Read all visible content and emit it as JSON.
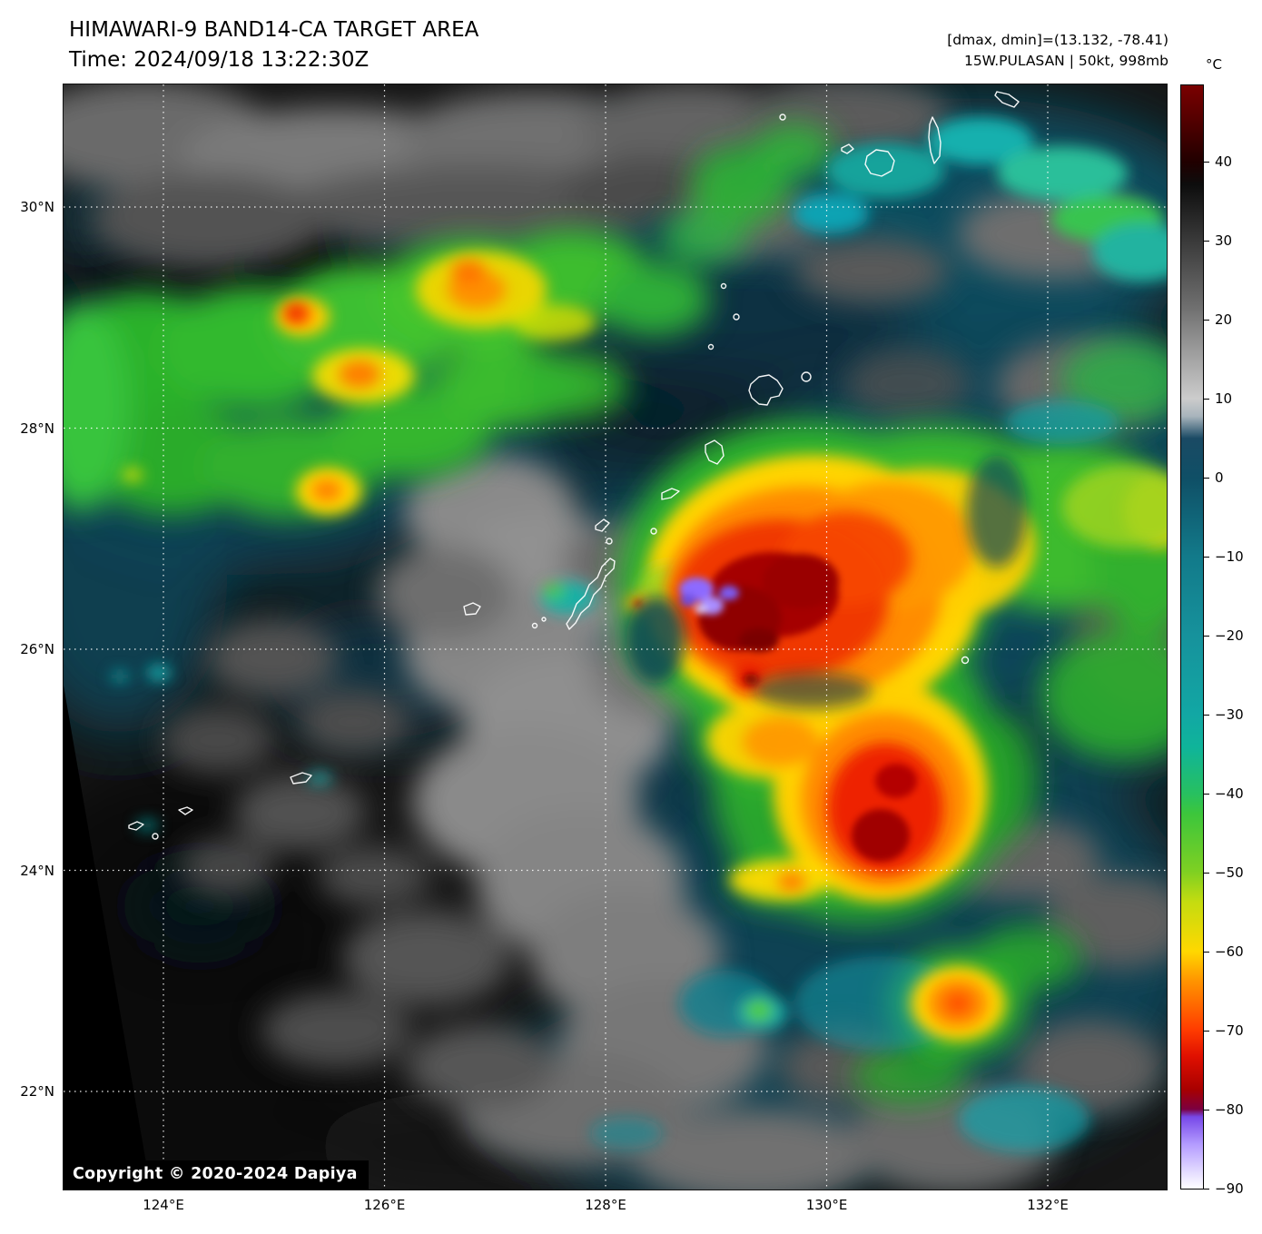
{
  "header": {
    "title": "HIMAWARI-9 BAND14-CA TARGET AREA",
    "time": "Time: 2024/09/18 13:22:30Z",
    "dmax_dmin": "[dmax, dmin]=(13.132, -78.41)",
    "storm_info": "15W.PULASAN | 50kt, 998mb"
  },
  "colorbar": {
    "unit": "°C",
    "tick_labels": [
      "40",
      "30",
      "20",
      "10",
      "0",
      "−10",
      "−20",
      "−30",
      "−40",
      "−50",
      "−60",
      "−70",
      "−80",
      "−90"
    ]
  },
  "axes": {
    "lat_labels": [
      "30°N",
      "28°N",
      "26°N",
      "24°N",
      "22°N"
    ],
    "lon_labels": [
      "124°E",
      "126°E",
      "128°E",
      "130°E",
      "132°E"
    ]
  },
  "map": {
    "copyright": "Copyright © 2020-2024 Dapiya"
  },
  "chart_data": {
    "type": "heatmap",
    "title": "HIMAWARI-9 BAND14-CA TARGET AREA",
    "time_utc": "2024/09/18 13:22:30Z",
    "dmax": 13.132,
    "dmin": -78.41,
    "storm": {
      "designation": "15W",
      "name": "PULASAN",
      "wind": "50kt",
      "pressure": "998mb"
    },
    "x_ticks_lon": [
      "124°E",
      "126°E",
      "128°E",
      "130°E",
      "132°E"
    ],
    "y_ticks_lat": [
      "30°N",
      "28°N",
      "26°N",
      "24°N",
      "22°N"
    ],
    "colorbar_unit": "°C",
    "colorbar_ticks": [
      40,
      30,
      20,
      10,
      0,
      -10,
      -20,
      -30,
      -40,
      -50,
      -60,
      -70,
      -80,
      -90
    ]
  }
}
